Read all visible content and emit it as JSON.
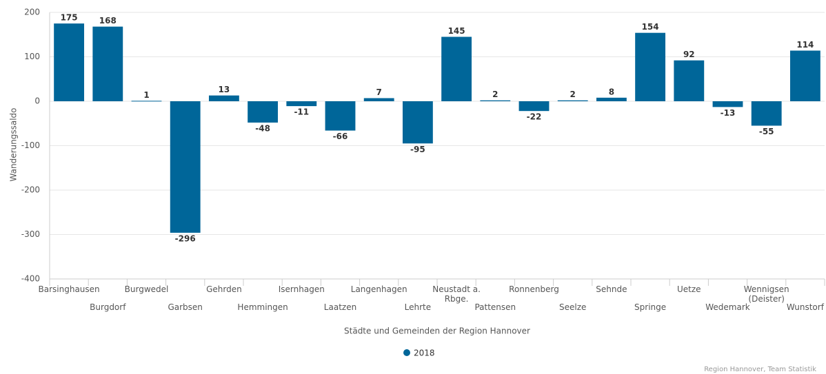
{
  "chart_data": {
    "type": "bar",
    "y_label": "Wanderungssaldo",
    "x_label": "Städte und Gemeinden der Region Hannover",
    "source": "Region Hannover, Team Statistik",
    "categories": [
      "Barsinghausen",
      "Burgdorf",
      "Burgwedel",
      "Garbsen",
      "Gehrden",
      "Hemmingen",
      "Isernhagen",
      "Laatzen",
      "Langenhagen",
      "Lehrte",
      "Neustadt a. Rbge.",
      "Pattensen",
      "Ronnenberg",
      "Seelze",
      "Sehnde",
      "Springe",
      "Uetze",
      "Wedemark",
      "Wennigsen (Deister)",
      "Wunstorf"
    ],
    "series": [
      {
        "name": "2018",
        "color": "#006699",
        "values": [
          175,
          168,
          1,
          -296,
          13,
          -48,
          -11,
          -66,
          7,
          -95,
          145,
          2,
          -22,
          2,
          8,
          154,
          92,
          -13,
          -55,
          114
        ]
      }
    ],
    "ylim": [
      -400,
      200
    ],
    "yticks": [
      -400,
      -300,
      -200,
      -100,
      0,
      100,
      200
    ],
    "grid": true
  }
}
